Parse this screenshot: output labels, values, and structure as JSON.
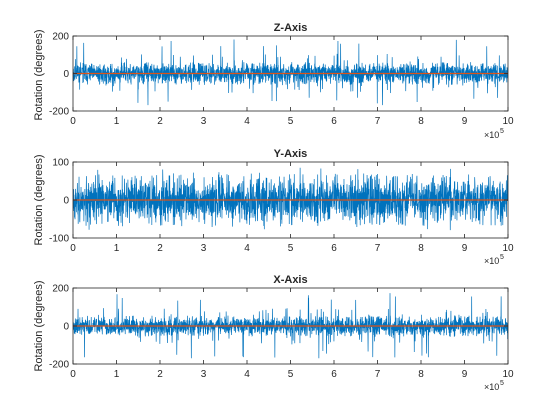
{
  "figure": {
    "background": "#ffffff",
    "axis_color": "#262626",
    "signal_color": "#0072BD",
    "mean_color": "#D95319"
  },
  "chart_data": [
    {
      "type": "line",
      "title": "Z-Axis",
      "xlabel": "",
      "ylabel": "Rotation (degrees)",
      "xlim": [
        0,
        1000000
      ],
      "ylim": [
        -200,
        200
      ],
      "xticks": [
        0,
        1,
        2,
        3,
        4,
        5,
        6,
        7,
        8,
        9,
        10
      ],
      "yticks": [
        -200,
        0,
        200
      ],
      "x_multiplier": "×10",
      "x_multiplier_exp": "5",
      "grid": false,
      "series": [
        {
          "kind": "noise",
          "x_range": [
            0,
            1000000
          ],
          "band": [
            -60,
            60
          ],
          "spike_max": 190,
          "spike_min": -170,
          "seed": 11
        },
        {
          "kind": "constant",
          "y": 0
        }
      ]
    },
    {
      "type": "line",
      "title": "Y-Axis",
      "xlabel": "",
      "ylabel": "Rotation (degrees)",
      "xlim": [
        0,
        1000000
      ],
      "ylim": [
        -100,
        100
      ],
      "xticks": [
        0,
        1,
        2,
        3,
        4,
        5,
        6,
        7,
        8,
        9,
        10
      ],
      "yticks": [
        -100,
        0,
        100
      ],
      "x_multiplier": "×10",
      "x_multiplier_exp": "5",
      "grid": false,
      "series": [
        {
          "kind": "noise",
          "x_range": [
            0,
            1000000
          ],
          "band": [
            -62,
            62
          ],
          "spike_max": 85,
          "spike_min": -80,
          "seed": 23
        },
        {
          "kind": "constant",
          "y": 0
        }
      ]
    },
    {
      "type": "line",
      "title": "X-Axis",
      "xlabel": "",
      "ylabel": "Rotation (degrees)",
      "xlim": [
        0,
        1000000
      ],
      "ylim": [
        -200,
        200
      ],
      "xticks": [
        0,
        1,
        2,
        3,
        4,
        5,
        6,
        7,
        8,
        9,
        10
      ],
      "yticks": [
        -200,
        0,
        200
      ],
      "x_multiplier": "×10",
      "x_multiplier_exp": "5",
      "grid": false,
      "series": [
        {
          "kind": "noise",
          "x_range": [
            0,
            1000000
          ],
          "band": [
            -55,
            55
          ],
          "spike_max": 175,
          "spike_min": -170,
          "seed": 37
        },
        {
          "kind": "constant",
          "y": 0
        }
      ]
    }
  ]
}
